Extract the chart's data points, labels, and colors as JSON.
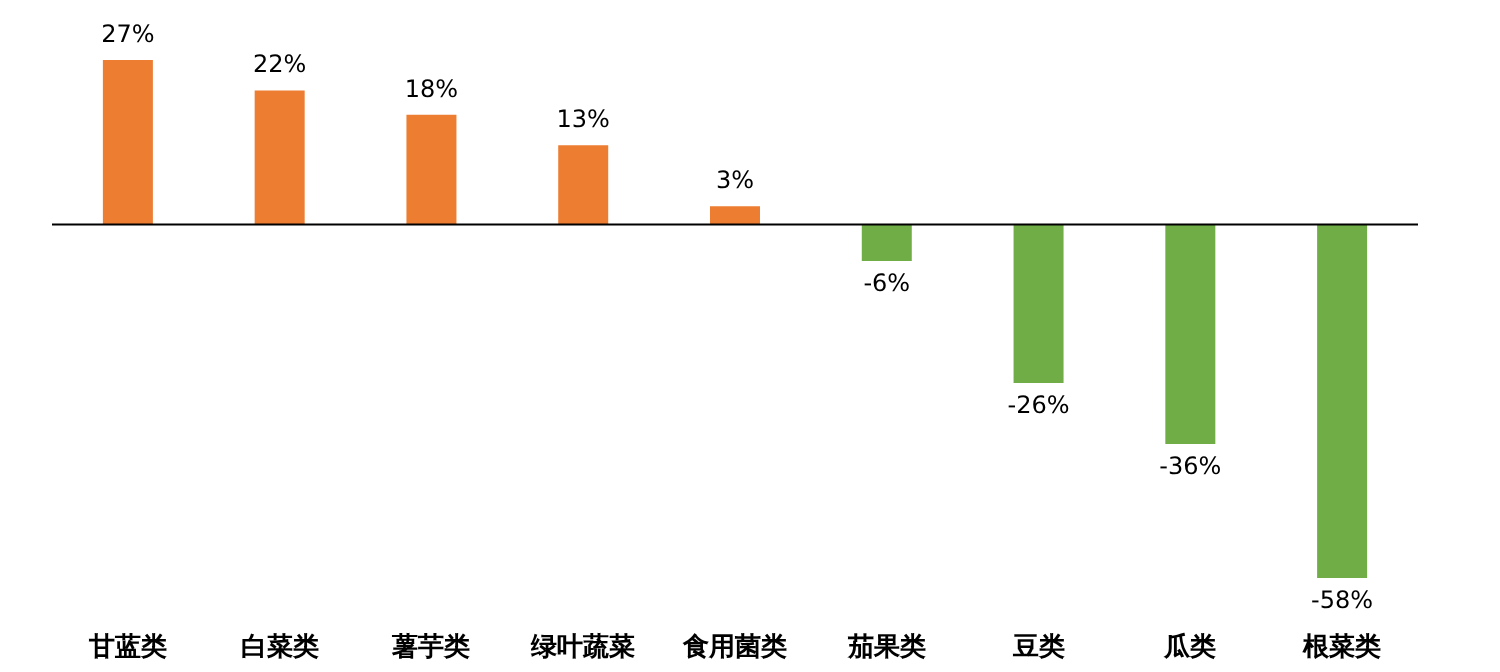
{
  "chart_data": {
    "type": "bar",
    "categories": [
      "甘蓝类",
      "白菜类",
      "薯芋类",
      "绿叶蔬菜",
      "食用菌类",
      "茄果类",
      "豆类",
      "瓜类",
      "根菜类"
    ],
    "values": [
      27,
      22,
      18,
      13,
      3,
      -6,
      -26,
      -36,
      -58
    ],
    "colors": [
      "#ed7d31",
      "#ed7d31",
      "#ed7d31",
      "#ed7d31",
      "#ed7d31",
      "#70ad47",
      "#70ad47",
      "#70ad47",
      "#70ad47"
    ],
    "value_labels": [
      "27%",
      "22%",
      "18%",
      "13%",
      "3%",
      "-6%",
      "-26%",
      "-36%",
      "-58%"
    ],
    "grid": false
  }
}
